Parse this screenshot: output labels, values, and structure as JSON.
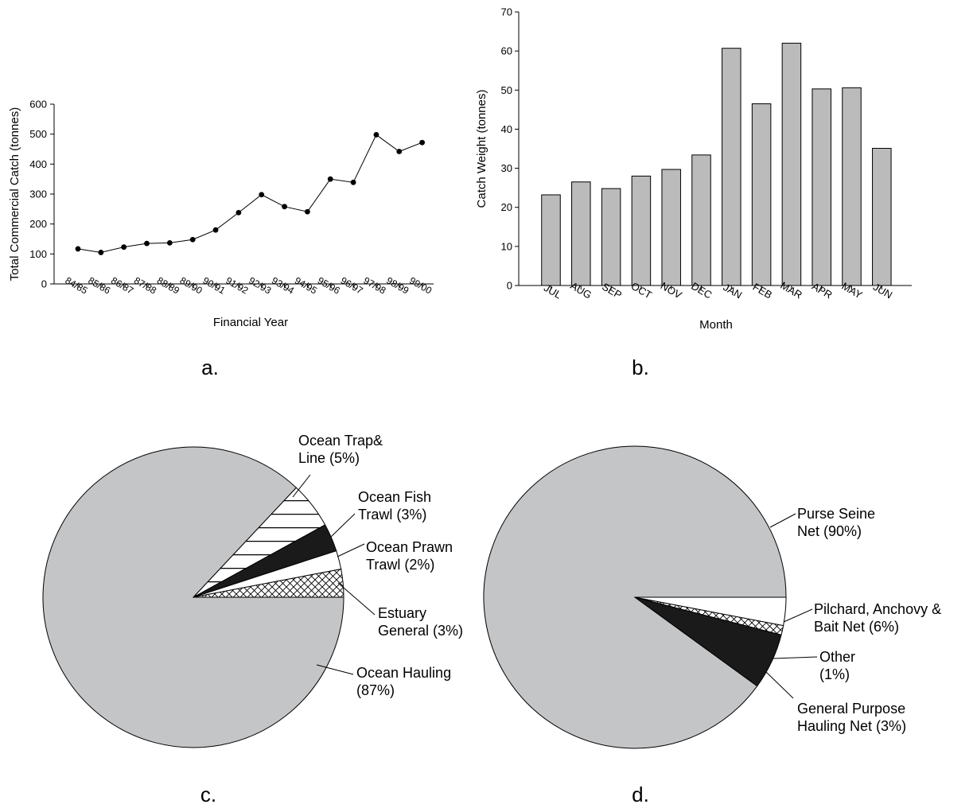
{
  "panels": {
    "a": "a.",
    "b": "b.",
    "c": "c.",
    "d": "d."
  },
  "colors": {
    "bar_fill": "#bbbbbb",
    "pie_fill": "#c4c5c7",
    "dark_fill": "#1a1a1a",
    "line": "#000000"
  },
  "chart_data": [
    {
      "id": "a",
      "type": "line",
      "title": "",
      "xlabel": "Financial Year",
      "ylabel": "Total Commercial Catch (tonnes)",
      "categories": [
        "84/85",
        "85/86",
        "86/87",
        "87/88",
        "88/89",
        "89/90",
        "90/91",
        "91/92",
        "92/93",
        "93/94",
        "94/95",
        "95/96",
        "96/97",
        "97/98",
        "98/99",
        "99/00"
      ],
      "series": [
        {
          "values": [
            117,
            105,
            123,
            135,
            137,
            148,
            180,
            238,
            298,
            258,
            241,
            350,
            339,
            498,
            442,
            472
          ]
        }
      ],
      "ylim": [
        0,
        600
      ],
      "yticks": [
        0,
        100,
        200,
        300,
        400,
        500,
        600
      ],
      "grid": false,
      "marker": "filled-circle"
    },
    {
      "id": "b",
      "type": "bar",
      "title": "",
      "xlabel": "Month",
      "ylabel": "Catch Weight (tonnes)",
      "categories": [
        "JUL",
        "AUG",
        "SEP",
        "OCT",
        "NOV",
        "DEC",
        "JAN",
        "FEB",
        "MAR",
        "APR",
        "MAY",
        "JUN"
      ],
      "values": [
        23.2,
        26.5,
        24.8,
        28.0,
        29.7,
        33.4,
        60.7,
        46.5,
        62.0,
        50.3,
        50.6,
        35.1
      ],
      "ylim": [
        0,
        70
      ],
      "yticks": [
        0,
        10,
        20,
        30,
        40,
        50,
        60,
        70
      ],
      "grid": false
    },
    {
      "id": "c",
      "type": "pie",
      "slices": [
        {
          "label": [
            "Ocean Hauling",
            "(87%)"
          ],
          "value": 87,
          "pattern": "solid-gray"
        },
        {
          "label": [
            "Ocean Trap&",
            "Line (5%)"
          ],
          "value": 5,
          "pattern": "horizontal-lines"
        },
        {
          "label": [
            "Ocean Fish",
            "Trawl (3%)"
          ],
          "value": 3,
          "pattern": "solid-black"
        },
        {
          "label": [
            "Ocean Prawn",
            "Trawl (2%)"
          ],
          "value": 2,
          "pattern": "white"
        },
        {
          "label": [
            "Estuary",
            "General (3%)"
          ],
          "value": 3,
          "pattern": "crosshatch"
        }
      ]
    },
    {
      "id": "d",
      "type": "pie",
      "slices": [
        {
          "label": [
            "Purse Seine",
            "Net (90%)"
          ],
          "value": 90,
          "pattern": "solid-gray"
        },
        {
          "label": [
            "Pilchard, Anchovy &",
            "Bait Net (6%)"
          ],
          "value": 6,
          "pattern": "solid-black"
        },
        {
          "label": [
            "Other",
            "(1%)"
          ],
          "value": 1,
          "pattern": "crosshatch"
        },
        {
          "label": [
            "General Purpose",
            "Hauling Net (3%)"
          ],
          "value": 3,
          "pattern": "white"
        }
      ]
    }
  ]
}
